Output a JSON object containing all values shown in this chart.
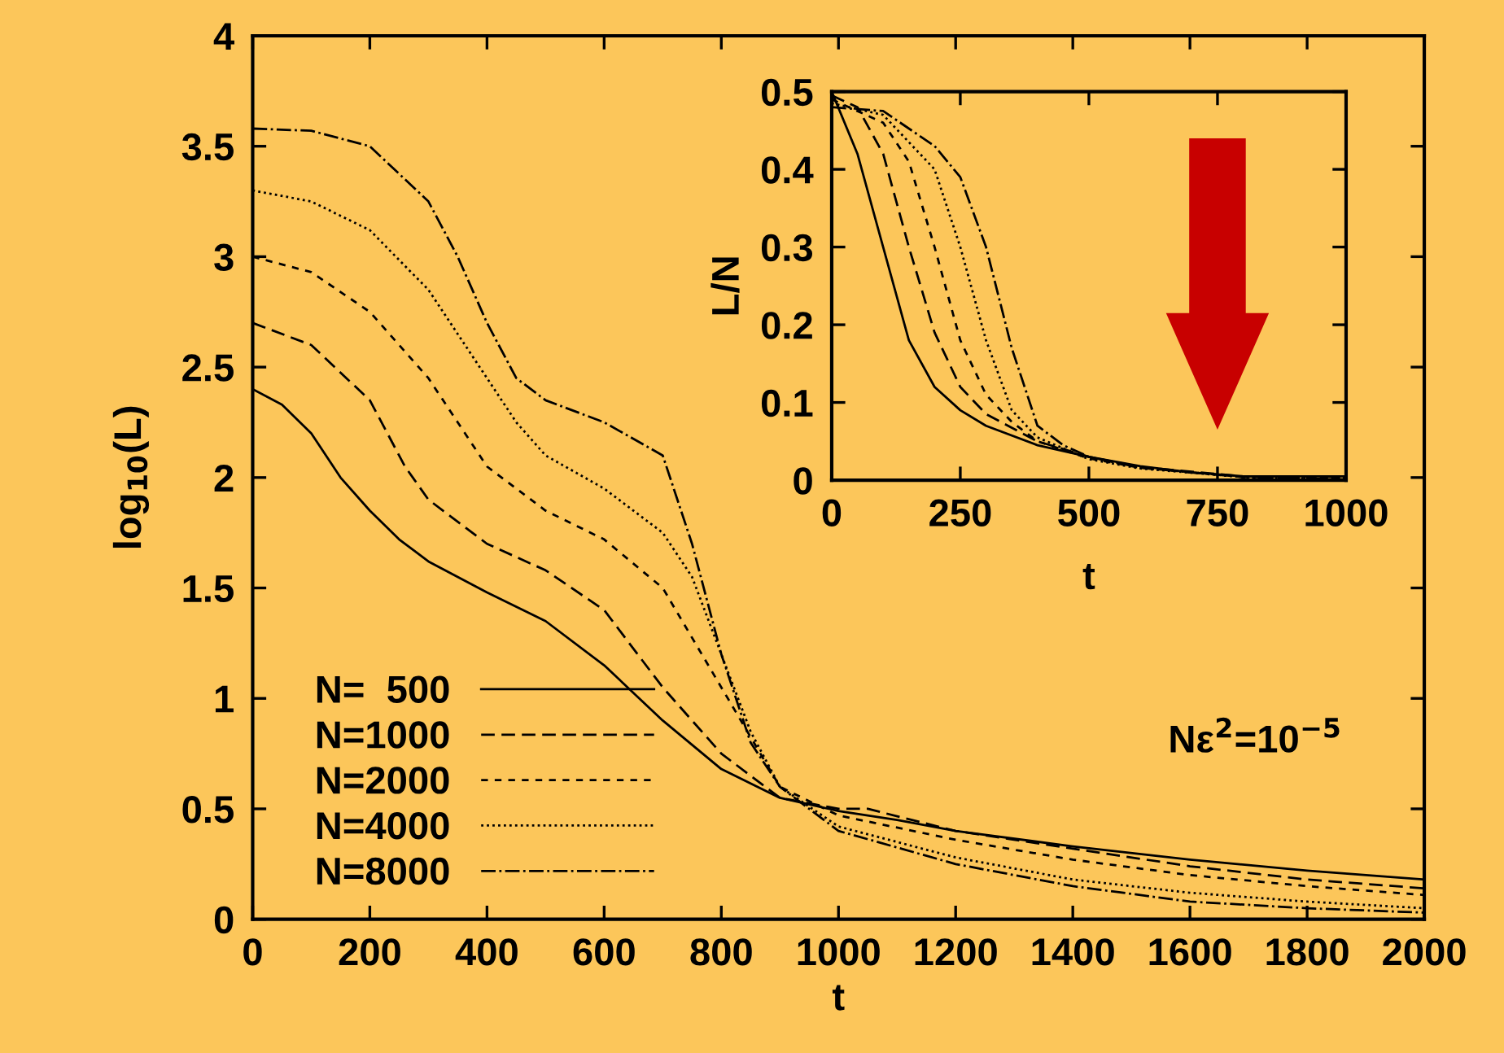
{
  "chart_data": [
    {
      "type": "line",
      "xlabel": "t",
      "ylabel": "log$_{10}$(L)",
      "xlim": [
        0,
        2000
      ],
      "ylim": [
        0,
        4
      ],
      "xticks": [
        0,
        200,
        400,
        600,
        800,
        1000,
        1200,
        1400,
        1600,
        1800,
        2000
      ],
      "yticks": [
        0,
        0.5,
        1,
        1.5,
        2,
        2.5,
        3,
        3.5,
        4
      ],
      "grid": false,
      "legend": "bottom left",
      "annotations": [
        "Nε$^{2}$=10$^{−5}$"
      ],
      "series": [
        {
          "name": "N=  500",
          "color": "#000000",
          "line_style": "solid",
          "x": [
            0,
            50,
            100,
            150,
            200,
            250,
            300,
            400,
            500,
            600,
            700,
            800,
            900,
            1000,
            1100,
            1200,
            1400,
            1600,
            1800,
            2000
          ],
          "values": [
            2.4,
            2.33,
            2.2,
            2.0,
            1.85,
            1.72,
            1.62,
            1.48,
            1.35,
            1.15,
            0.9,
            0.68,
            0.55,
            0.49,
            0.45,
            0.4,
            0.33,
            0.27,
            0.22,
            0.18
          ]
        },
        {
          "name": "N=1000",
          "color": "#000000",
          "line_style": "dashed",
          "x": [
            0,
            100,
            200,
            260,
            300,
            400,
            500,
            600,
            700,
            800,
            900,
            1000,
            1050,
            1200,
            1400,
            1600,
            1800,
            2000
          ],
          "values": [
            2.7,
            2.6,
            2.35,
            2.05,
            1.9,
            1.7,
            1.58,
            1.4,
            1.05,
            0.75,
            0.55,
            0.5,
            0.5,
            0.4,
            0.32,
            0.24,
            0.18,
            0.14
          ]
        },
        {
          "name": "N=2000",
          "color": "#000000",
          "line_style": "dashed",
          "x": [
            0,
            100,
            200,
            300,
            350,
            400,
            500,
            600,
            700,
            800,
            900,
            1000,
            1200,
            1400,
            1600,
            1800,
            2000
          ],
          "values": [
            3.0,
            2.93,
            2.75,
            2.45,
            2.25,
            2.05,
            1.85,
            1.72,
            1.5,
            1.05,
            0.6,
            0.47,
            0.36,
            0.27,
            0.2,
            0.15,
            0.11
          ]
        },
        {
          "name": "N=4000",
          "color": "#000000",
          "line_style": "dotted",
          "x": [
            0,
            100,
            200,
            300,
            400,
            450,
            500,
            600,
            700,
            750,
            800,
            850,
            900,
            1000,
            1200,
            1400,
            1600,
            1800,
            2000
          ],
          "values": [
            3.3,
            3.25,
            3.12,
            2.85,
            2.45,
            2.25,
            2.1,
            1.95,
            1.75,
            1.55,
            1.2,
            0.85,
            0.6,
            0.42,
            0.28,
            0.18,
            0.12,
            0.08,
            0.05
          ]
        },
        {
          "name": "N=8000",
          "color": "#000000",
          "line_style": "dashdot",
          "x": [
            0,
            100,
            200,
            300,
            350,
            400,
            450,
            500,
            600,
            700,
            750,
            800,
            850,
            900,
            1000,
            1200,
            1400,
            1600,
            1800,
            2000
          ],
          "values": [
            3.58,
            3.57,
            3.5,
            3.25,
            3.0,
            2.7,
            2.45,
            2.35,
            2.25,
            2.1,
            1.7,
            1.2,
            0.8,
            0.6,
            0.4,
            0.25,
            0.15,
            0.08,
            0.05,
            0.03
          ]
        }
      ]
    },
    {
      "type": "line",
      "xlabel": "t",
      "ylabel": "L/N",
      "xlim": [
        0,
        1000
      ],
      "ylim": [
        0,
        0.5
      ],
      "xticks": [
        0,
        250,
        500,
        750,
        1000
      ],
      "yticks": [
        0,
        0.1,
        0.2,
        0.3,
        0.4,
        0.5
      ],
      "grid": false,
      "series": [
        {
          "color": "#000000",
          "line_style": "solid",
          "x": [
            0,
            50,
            100,
            150,
            200,
            250,
            300,
            400,
            500,
            600,
            700,
            800,
            1000
          ],
          "values": [
            0.5,
            0.42,
            0.3,
            0.18,
            0.12,
            0.09,
            0.07,
            0.045,
            0.03,
            0.018,
            0.01,
            0.005,
            0.005
          ]
        },
        {
          "color": "#000000",
          "line_style": "dashed",
          "x": [
            0,
            50,
            100,
            150,
            200,
            250,
            300,
            400,
            500,
            600,
            800,
            1000
          ],
          "values": [
            0.495,
            0.48,
            0.42,
            0.3,
            0.19,
            0.12,
            0.085,
            0.05,
            0.03,
            0.017,
            0.005,
            0.004
          ]
        },
        {
          "color": "#000000",
          "line_style": "dashed",
          "x": [
            0,
            100,
            150,
            200,
            250,
            300,
            350,
            400,
            500,
            600,
            800,
            1000
          ],
          "values": [
            0.49,
            0.46,
            0.41,
            0.3,
            0.18,
            0.11,
            0.075,
            0.05,
            0.028,
            0.016,
            0.004,
            0.003
          ]
        },
        {
          "color": "#000000",
          "line_style": "dotted",
          "x": [
            0,
            100,
            200,
            250,
            300,
            350,
            400,
            500,
            600,
            800,
            1000
          ],
          "values": [
            0.485,
            0.47,
            0.4,
            0.3,
            0.18,
            0.09,
            0.055,
            0.027,
            0.015,
            0.004,
            0.002
          ]
        },
        {
          "color": "#000000",
          "line_style": "dashdot",
          "x": [
            0,
            100,
            200,
            250,
            300,
            350,
            400,
            450,
            500,
            600,
            800,
            1000
          ],
          "values": [
            0.48,
            0.475,
            0.43,
            0.39,
            0.3,
            0.17,
            0.07,
            0.045,
            0.03,
            0.016,
            0.004,
            0.001
          ]
        }
      ]
    }
  ]
}
